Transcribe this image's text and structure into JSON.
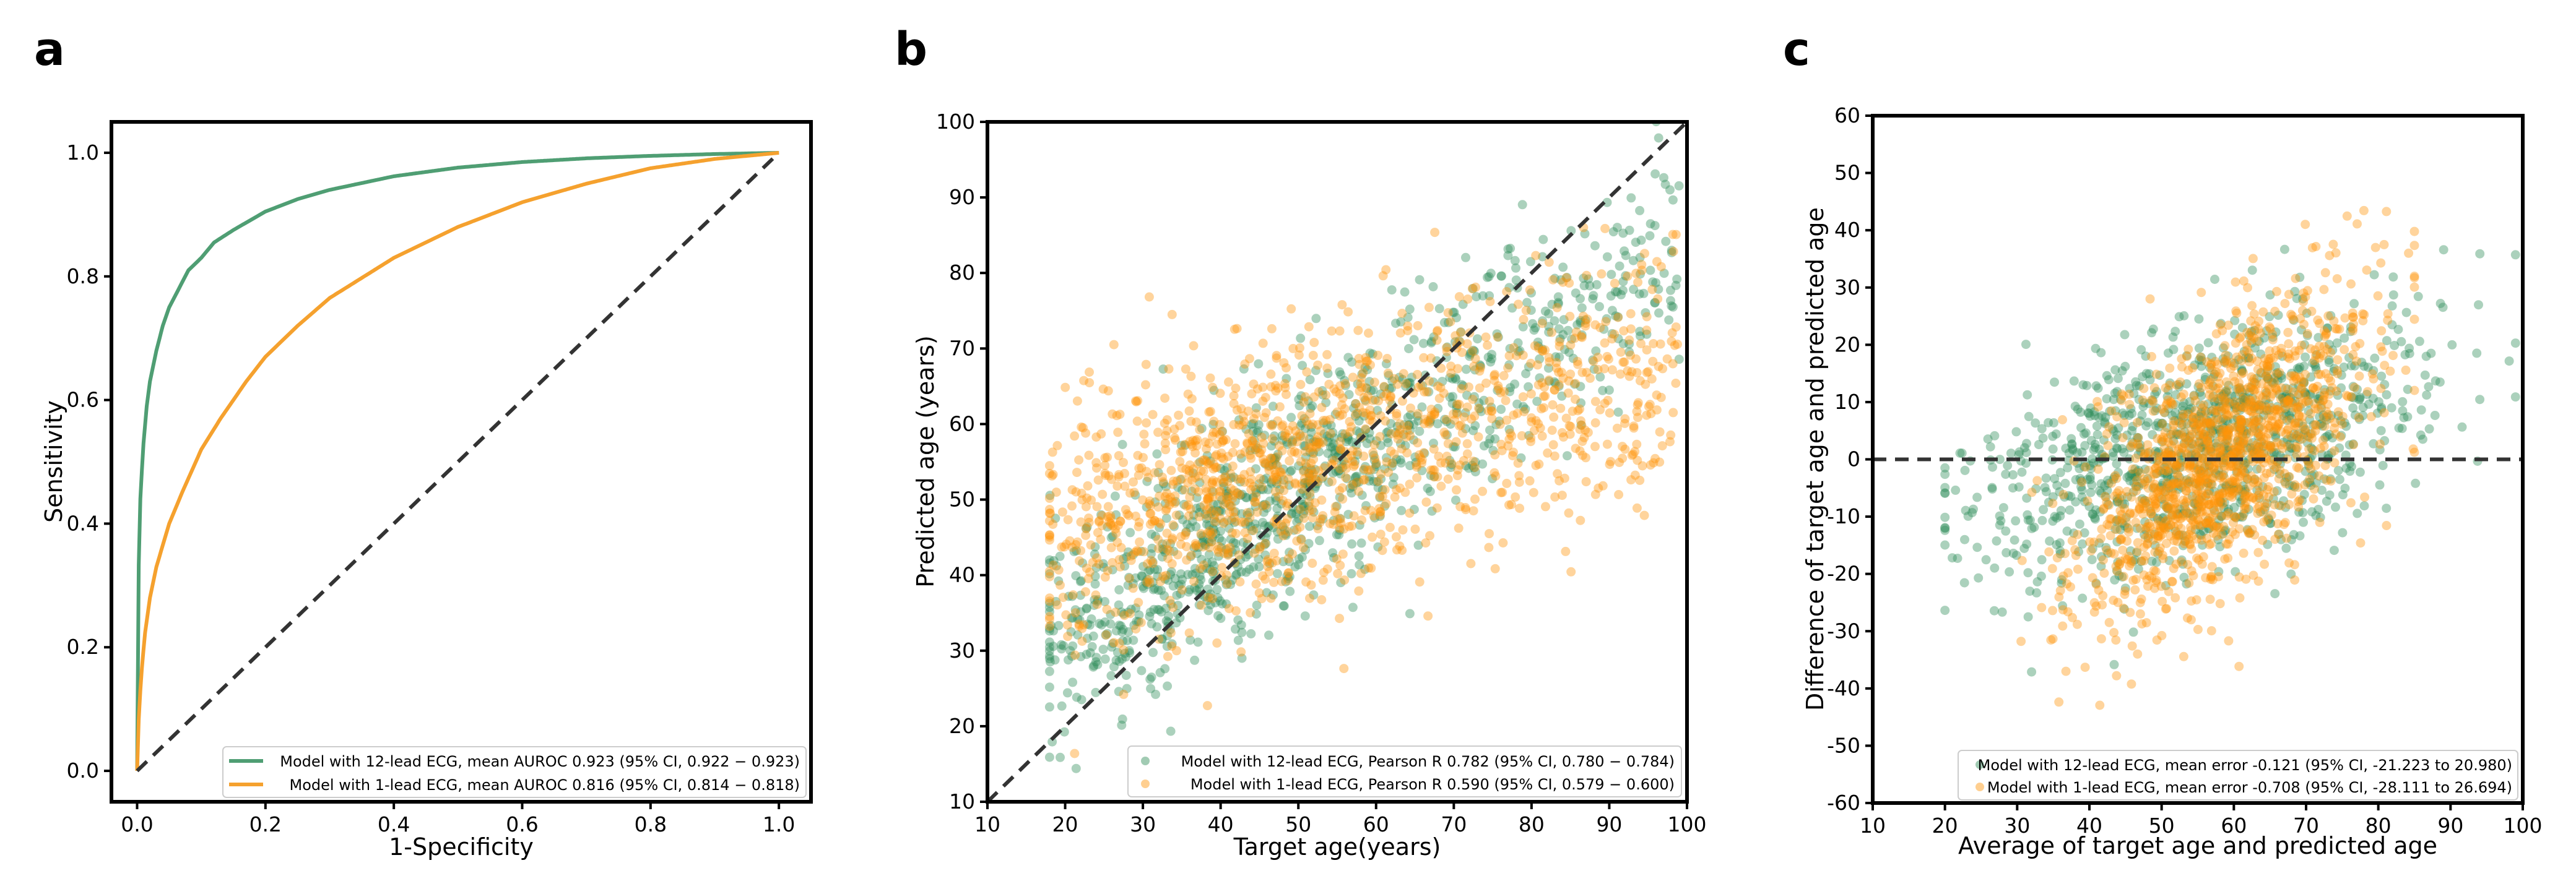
{
  "colors": {
    "green": "#2e8b57",
    "orange": "#ff9408",
    "roc_green": "#4f9e73",
    "roc_orange": "#f5a12e",
    "diag": "#333333"
  },
  "chart_data": [
    {
      "panel": "a",
      "type": "line",
      "title": "",
      "xlabel": "1-Specificity",
      "ylabel": "Sensitivity",
      "xlim": [
        -0.04,
        1.05
      ],
      "ylim": [
        -0.05,
        1.05
      ],
      "xticks": [
        0.0,
        0.2,
        0.4,
        0.6,
        0.8,
        1.0
      ],
      "xtick_labels": [
        "0.0",
        "0.2",
        "0.4",
        "0.6",
        "0.8",
        "1.0"
      ],
      "yticks": [
        0.0,
        0.2,
        0.4,
        0.6,
        0.8,
        1.0
      ],
      "ytick_labels": [
        "0.0",
        "0.2",
        "0.4",
        "0.6",
        "0.8",
        "1.0"
      ],
      "legend_position": "lower-right",
      "series": [
        {
          "name": "Model with 12-lead ECG, mean AUROC 0.923 (95% CI, 0.922 − 0.923)",
          "color": "roc_green",
          "x": [
            0,
            0.003,
            0.006,
            0.01,
            0.015,
            0.02,
            0.03,
            0.04,
            0.05,
            0.06,
            0.08,
            0.1,
            0.12,
            0.15,
            0.2,
            0.25,
            0.3,
            0.4,
            0.5,
            0.6,
            0.7,
            0.8,
            0.9,
            1.0
          ],
          "y": [
            0,
            0.4,
            0.46,
            0.53,
            0.59,
            0.63,
            0.68,
            0.72,
            0.75,
            0.77,
            0.81,
            0.83,
            0.855,
            0.875,
            0.905,
            0.925,
            0.94,
            0.962,
            0.976,
            0.985,
            0.991,
            0.995,
            0.998,
            1.0
          ]
        },
        {
          "name": "Model with 1-lead ECG, mean AUROC 0.816 (95% CI, 0.814 − 0.818)",
          "color": "roc_orange",
          "x": [
            0,
            0.003,
            0.007,
            0.012,
            0.02,
            0.03,
            0.05,
            0.07,
            0.1,
            0.13,
            0.17,
            0.2,
            0.25,
            0.3,
            0.4,
            0.5,
            0.6,
            0.7,
            0.8,
            0.9,
            1.0
          ],
          "y": [
            0,
            0.1,
            0.16,
            0.22,
            0.28,
            0.33,
            0.4,
            0.45,
            0.52,
            0.57,
            0.63,
            0.67,
            0.72,
            0.765,
            0.83,
            0.88,
            0.92,
            0.95,
            0.975,
            0.99,
            1.0
          ]
        },
        {
          "name": "chance",
          "color": "diag",
          "style": "dashed",
          "x": [
            0,
            1
          ],
          "y": [
            0,
            1
          ]
        }
      ]
    },
    {
      "panel": "b",
      "type": "scatter",
      "title": "",
      "xlabel": "Target age(years)",
      "ylabel": "Predicted age (years)",
      "xlim": [
        10,
        100
      ],
      "ylim": [
        10,
        100
      ],
      "xticks": [
        10,
        20,
        30,
        40,
        50,
        60,
        70,
        80,
        90,
        100
      ],
      "yticks": [
        10,
        20,
        30,
        40,
        50,
        60,
        70,
        80,
        90,
        100
      ],
      "legend_position": "lower-right",
      "reference_line": {
        "style": "dashed",
        "x": [
          10,
          100
        ],
        "y": [
          10,
          100
        ]
      },
      "series": [
        {
          "name": "Model with 12-lead ECG, Pearson R 0.782 (95% CI, 0.780 − 0.784)",
          "color": "green",
          "pearson_r": 0.782,
          "approx_points": 1100,
          "approx_trend": {
            "x_range": [
              18,
              99
            ],
            "y_at_x20": 32,
            "y_at_x90": 78,
            "spread_sd": 7.5
          }
        },
        {
          "name": "Model with 1-lead ECG, Pearson R 0.590 (95% CI, 0.579 − 0.600)",
          "color": "orange",
          "pearson_r": 0.59,
          "approx_points": 1300,
          "approx_trend": {
            "x_range": [
              18,
              99
            ],
            "y_at_x20": 46,
            "y_at_x90": 66,
            "spread_sd": 8.5
          }
        }
      ]
    },
    {
      "panel": "c",
      "type": "scatter",
      "title": "",
      "xlabel": "Average of target age and predicted age",
      "ylabel": "Difference of target age and predicted age",
      "xlim": [
        10,
        100
      ],
      "ylim": [
        -60,
        60
      ],
      "xticks": [
        10,
        20,
        30,
        40,
        50,
        60,
        70,
        80,
        90,
        100
      ],
      "yticks": [
        -60,
        -50,
        -40,
        -30,
        -20,
        -10,
        0,
        10,
        20,
        30,
        40,
        50,
        60
      ],
      "legend_position": "lower-right",
      "reference_line": {
        "style": "dashed",
        "x": [
          10,
          100
        ],
        "y": [
          0,
          0
        ]
      },
      "series": [
        {
          "name": "Model with 12-lead ECG, mean error -0.121 (95% CI, -21.223 to 20.980)",
          "color": "green",
          "mean_error": -0.121,
          "loa": [
            -21.223,
            20.98
          ],
          "approx_points": 1100,
          "approx_trend": {
            "x_range": [
              20,
              99
            ],
            "y_at_x25": -8,
            "y_at_x85": 12,
            "spread_sd": 10
          }
        },
        {
          "name": "Model with 1-lead ECG, mean error -0.708 (95% CI, -28.111 to 26.694)",
          "color": "orange",
          "mean_error": -0.708,
          "loa": [
            -28.111,
            26.694
          ],
          "approx_points": 1300,
          "approx_trend": {
            "x_range": [
              30,
              85
            ],
            "y_at_x35": -20,
            "y_at_x75": 15,
            "spread_sd": 11
          }
        }
      ]
    }
  ]
}
